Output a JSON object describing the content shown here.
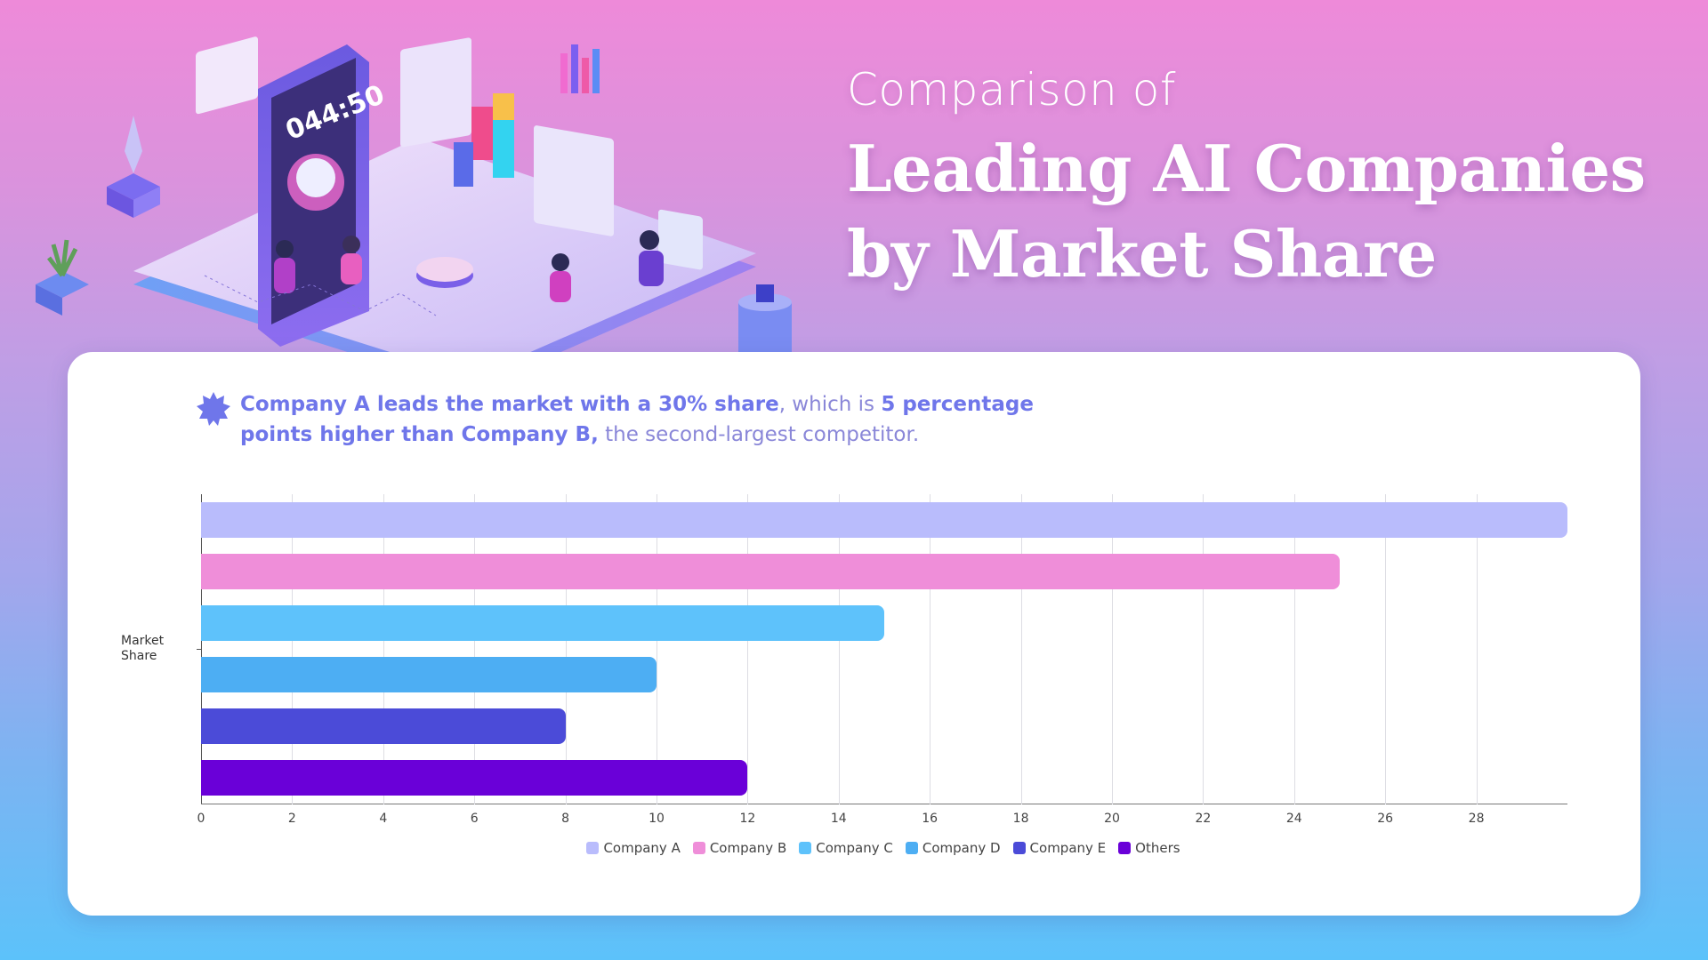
{
  "header": {
    "title_pre": "Comparison of",
    "title_line1": "Leading AI Companies",
    "title_line2": "by Market Share"
  },
  "illustration": {
    "phone_display": "044:50",
    "icon": "isometric-ai-workspace-illustration"
  },
  "callout": {
    "icon": "starburst-icon",
    "bold1": "Company A leads the market with a 30% share",
    "normal1": ", which is ",
    "bold2": "5 percentage points higher than Company B,",
    "normal2": " the second-largest competitor."
  },
  "colors": {
    "callout": "#6f76ea",
    "card": "#ffffff"
  },
  "chart_data": {
    "type": "bar",
    "orientation": "horizontal",
    "title": "Leading AI Companies by Market Share",
    "xlabel": "",
    "ylabel": "Market Share",
    "categories": [
      "Market Share"
    ],
    "series": [
      {
        "name": "Company A",
        "values": [
          30
        ],
        "color": "#b9bcfc"
      },
      {
        "name": "Company B",
        "values": [
          25
        ],
        "color": "#ef8ed9"
      },
      {
        "name": "Company C",
        "values": [
          15
        ],
        "color": "#5ec2fb"
      },
      {
        "name": "Company D",
        "values": [
          10
        ],
        "color": "#4daef3"
      },
      {
        "name": "Company E",
        "values": [
          8
        ],
        "color": "#4b4bd8"
      },
      {
        "name": "Others",
        "values": [
          12
        ],
        "color": "#6a00d8"
      }
    ],
    "xlim": [
      0,
      30
    ],
    "xticks": [
      "0",
      "2",
      "4",
      "6",
      "8",
      "10",
      "12",
      "14",
      "16",
      "18",
      "20",
      "22",
      "24",
      "26",
      "28"
    ],
    "grid": "vertical",
    "legend_position": "bottom"
  }
}
